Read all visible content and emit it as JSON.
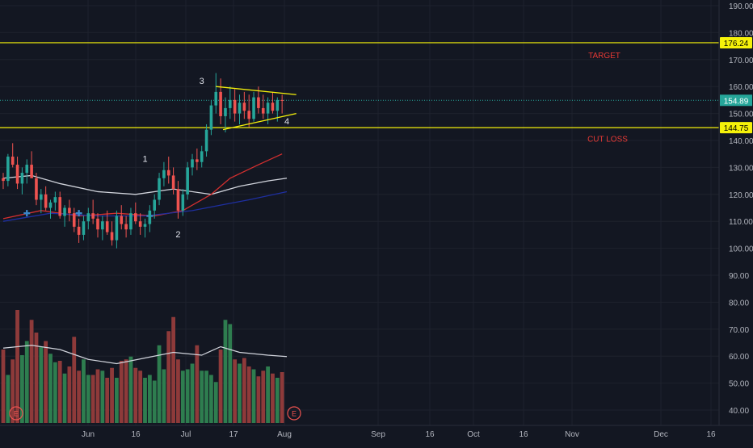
{
  "colors": {
    "background": "#131722",
    "grid": "#1e222d",
    "axis_text": "#b2b5be",
    "up": "#26a69a",
    "down": "#ef5350",
    "vol_up": "#2e7d4f",
    "vol_down": "#8e3a3a",
    "level": "#f5f10a",
    "pattern": "#f5f10a",
    "last_price_line": "#26a69a",
    "note_red": "#e53935",
    "ma_white": "#d1d4dc",
    "ma_red": "#d32f2f",
    "ma_blue": "#1e2fa0",
    "cross": "#3a86c8",
    "earnings": "#ef5350"
  },
  "price_axis": {
    "ticks": [
      "190.00",
      "180.00",
      "170.00",
      "160.00",
      "150.00",
      "140.00",
      "130.00",
      "120.00",
      "110.00",
      "100.00",
      "90.00",
      "80.00",
      "70.00",
      "60.00",
      "50.00",
      "40.00"
    ]
  },
  "time_axis": {
    "ticks": [
      "Jun",
      "16",
      "Jul",
      "17",
      "Aug",
      "Sep",
      "16",
      "Oct",
      "16",
      "Nov",
      "Dec",
      "16"
    ]
  },
  "annotations": {
    "target": "TARGET",
    "cut_loss": "CUT LOSS",
    "wave_labels": [
      "1",
      "2",
      "3",
      "4"
    ],
    "earnings_marker": "E"
  },
  "chart_data": {
    "type": "candlestick",
    "ylim": [
      36,
      196
    ],
    "levels": [
      {
        "label": "176.24",
        "value": 176.24
      },
      {
        "label": "144.75",
        "value": 144.75
      }
    ],
    "last_price": {
      "label": "154.89",
      "value": 154.89
    },
    "candles": [
      [
        126,
        128,
        122,
        125
      ],
      [
        125,
        135,
        123,
        134
      ],
      [
        134,
        139,
        130,
        131
      ],
      [
        131,
        134,
        122,
        124
      ],
      [
        124,
        130,
        120,
        128
      ],
      [
        128,
        133,
        124,
        131
      ],
      [
        131,
        136,
        127,
        126
      ],
      [
        126,
        128,
        116,
        118
      ],
      [
        118,
        122,
        113,
        120
      ],
      [
        120,
        123,
        114,
        115
      ],
      [
        115,
        118,
        111,
        117
      ],
      [
        117,
        121,
        114,
        119
      ],
      [
        119,
        121,
        111,
        112
      ],
      [
        112,
        116,
        108,
        115
      ],
      [
        115,
        118,
        110,
        113
      ],
      [
        113,
        115,
        106,
        108
      ],
      [
        108,
        111,
        102,
        105
      ],
      [
        105,
        112,
        103,
        110
      ],
      [
        110,
        115,
        107,
        113
      ],
      [
        113,
        118,
        109,
        111
      ],
      [
        111,
        113,
        104,
        107
      ],
      [
        107,
        112,
        103,
        110
      ],
      [
        110,
        114,
        105,
        106
      ],
      [
        106,
        110,
        101,
        103
      ],
      [
        103,
        114,
        100,
        112
      ],
      [
        112,
        116,
        107,
        109
      ],
      [
        109,
        112,
        104,
        107
      ],
      [
        107,
        115,
        105,
        113
      ],
      [
        113,
        117,
        109,
        110
      ],
      [
        110,
        113,
        105,
        108
      ],
      [
        108,
        111,
        104,
        109
      ],
      [
        109,
        116,
        106,
        114
      ],
      [
        114,
        120,
        111,
        118
      ],
      [
        118,
        128,
        116,
        126
      ],
      [
        126,
        132,
        123,
        129
      ],
      [
        129,
        134,
        124,
        127
      ],
      [
        127,
        130,
        120,
        122
      ],
      [
        122,
        125,
        111,
        114
      ],
      [
        114,
        122,
        112,
        120
      ],
      [
        120,
        132,
        118,
        130
      ],
      [
        130,
        135,
        127,
        133
      ],
      [
        133,
        137,
        129,
        132
      ],
      [
        132,
        138,
        130,
        136
      ],
      [
        136,
        146,
        134,
        144
      ],
      [
        144,
        155,
        142,
        153
      ],
      [
        153,
        165,
        150,
        158
      ],
      [
        158,
        163,
        146,
        149
      ],
      [
        149,
        156,
        143,
        152
      ],
      [
        152,
        160,
        148,
        155
      ],
      [
        155,
        159,
        147,
        150
      ],
      [
        150,
        157,
        146,
        154
      ],
      [
        154,
        158,
        148,
        151
      ],
      [
        151,
        157,
        145,
        148
      ],
      [
        148,
        158,
        147,
        156
      ],
      [
        156,
        160,
        150,
        152
      ],
      [
        152,
        157,
        148,
        150
      ],
      [
        150,
        156,
        146,
        154
      ],
      [
        154,
        158,
        150,
        151
      ],
      [
        151,
        156,
        147,
        155
      ],
      [
        155,
        157,
        150,
        154.89
      ]
    ],
    "volumes": [
      52,
      34,
      45,
      80,
      48,
      58,
      73,
      64,
      54,
      58,
      49,
      43,
      44,
      35,
      40,
      61,
      37,
      45,
      34,
      34,
      38,
      37,
      32,
      39,
      32,
      44,
      45,
      47,
      39,
      37,
      32,
      34,
      30,
      55,
      38,
      65,
      75,
      45,
      37,
      38,
      42,
      55,
      37,
      37,
      34,
      29,
      52,
      73,
      70,
      45,
      42,
      46,
      40,
      38,
      33,
      37,
      40,
      35,
      32,
      36
    ],
    "moving_averages": [
      {
        "color_key": "ma_white",
        "points": [
          [
            0,
            126
          ],
          [
            6,
            127
          ],
          [
            12,
            124
          ],
          [
            20,
            121
          ],
          [
            28,
            120
          ],
          [
            36,
            122
          ],
          [
            44,
            120
          ],
          [
            50,
            123
          ],
          [
            56,
            125
          ],
          [
            60,
            126
          ]
        ]
      },
      {
        "color_key": "ma_red",
        "points": [
          [
            0,
            111
          ],
          [
            8,
            114
          ],
          [
            16,
            112
          ],
          [
            24,
            113
          ],
          [
            32,
            112
          ],
          [
            38,
            114
          ],
          [
            44,
            120
          ],
          [
            48,
            126
          ],
          [
            54,
            131
          ],
          [
            59,
            135
          ]
        ]
      },
      {
        "color_key": "ma_blue",
        "points": [
          [
            0,
            110
          ],
          [
            10,
            113
          ],
          [
            20,
            112
          ],
          [
            30,
            112
          ],
          [
            40,
            114
          ],
          [
            46,
            116
          ],
          [
            52,
            118
          ],
          [
            60,
            121
          ]
        ]
      }
    ],
    "volume_ma": {
      "color_key": "ma_white",
      "points": [
        [
          0,
          53
        ],
        [
          6,
          55
        ],
        [
          12,
          52
        ],
        [
          18,
          45
        ],
        [
          24,
          42
        ],
        [
          30,
          46
        ],
        [
          36,
          50
        ],
        [
          42,
          48
        ],
        [
          46,
          54
        ],
        [
          50,
          50
        ],
        [
          56,
          48
        ],
        [
          60,
          47
        ]
      ]
    }
  }
}
